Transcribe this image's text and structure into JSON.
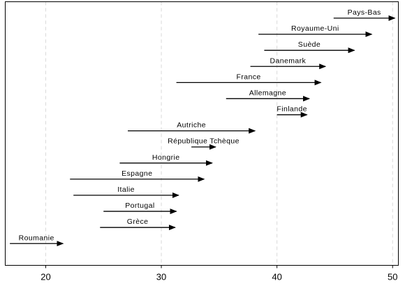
{
  "chart_data": {
    "type": "arrow",
    "title": "",
    "xlabel": "",
    "ylabel": "",
    "xlim": [
      16.5,
      50.5
    ],
    "xticks": [
      20,
      30,
      40,
      50
    ],
    "grid": "vertical-dashed",
    "arrow_color": "#000000",
    "grid_color": "#d9d9d9",
    "rows": [
      {
        "label": "Pays-Bas",
        "start": 44.9,
        "end": 50.2
      },
      {
        "label": "Royaume-Uni",
        "start": 38.4,
        "end": 48.2
      },
      {
        "label": "Suède",
        "start": 38.9,
        "end": 46.7
      },
      {
        "label": "Danemark",
        "start": 37.7,
        "end": 44.2
      },
      {
        "label": "France",
        "start": 31.3,
        "end": 43.8
      },
      {
        "label": "Allemagne",
        "start": 35.6,
        "end": 42.8
      },
      {
        "label": "Finlande",
        "start": 40.0,
        "end": 42.6
      },
      {
        "label": "Autriche",
        "start": 27.1,
        "end": 38.1
      },
      {
        "label": "République Tchèque",
        "start": 32.6,
        "end": 34.7
      },
      {
        "label": "Hongrie",
        "start": 26.4,
        "end": 34.4
      },
      {
        "label": "Espagne",
        "start": 22.1,
        "end": 33.7
      },
      {
        "label": "Italie",
        "start": 22.4,
        "end": 31.5
      },
      {
        "label": "Portugal",
        "start": 25.0,
        "end": 31.3
      },
      {
        "label": "Grèce",
        "start": 24.7,
        "end": 31.2
      },
      {
        "label": "Roumanie",
        "start": 16.9,
        "end": 21.5
      }
    ]
  }
}
